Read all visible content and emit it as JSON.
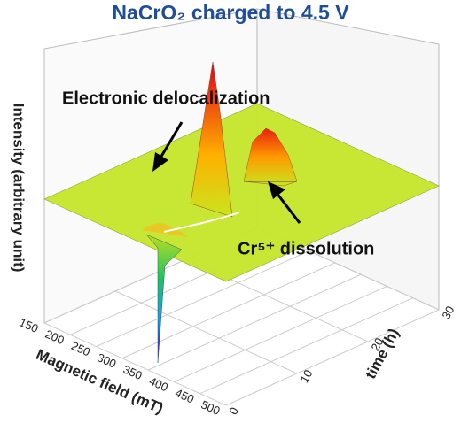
{
  "chart_data": {
    "type": "surface3d",
    "title": "NaCrO₂ charged to 4.5 V",
    "x_label": "Magnetic field (mT)",
    "y_label": "time (h)",
    "z_label": "Intensity (arbitrary unit)",
    "xlim": [
      150,
      500
    ],
    "xticks": [
      150,
      200,
      250,
      300,
      350,
      400,
      450,
      500
    ],
    "ylim": [
      0,
      30
    ],
    "yticks": [
      0,
      10,
      20,
      30
    ],
    "grid": true,
    "annotations": [
      "Electronic delocalization",
      "Cr⁵⁺ dissolution"
    ]
  }
}
